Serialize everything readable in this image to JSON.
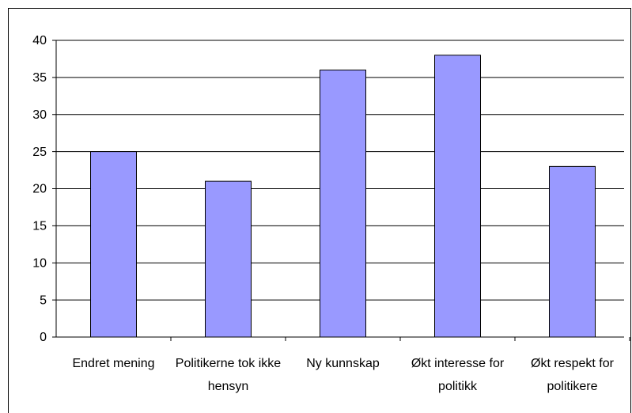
{
  "chart_data": {
    "type": "bar",
    "categories": [
      "Endret mening",
      "Politikerne tok ikke hensyn",
      "Ny kunnskap",
      "Økt interesse for politikk",
      "Økt respekt for politikere"
    ],
    "values": [
      25,
      21,
      36,
      38,
      23
    ],
    "color": "#9999ff",
    "ylim": [
      0,
      40
    ],
    "yticks": [
      0,
      5,
      10,
      15,
      20,
      25,
      30,
      35,
      40
    ],
    "grid": true
  }
}
